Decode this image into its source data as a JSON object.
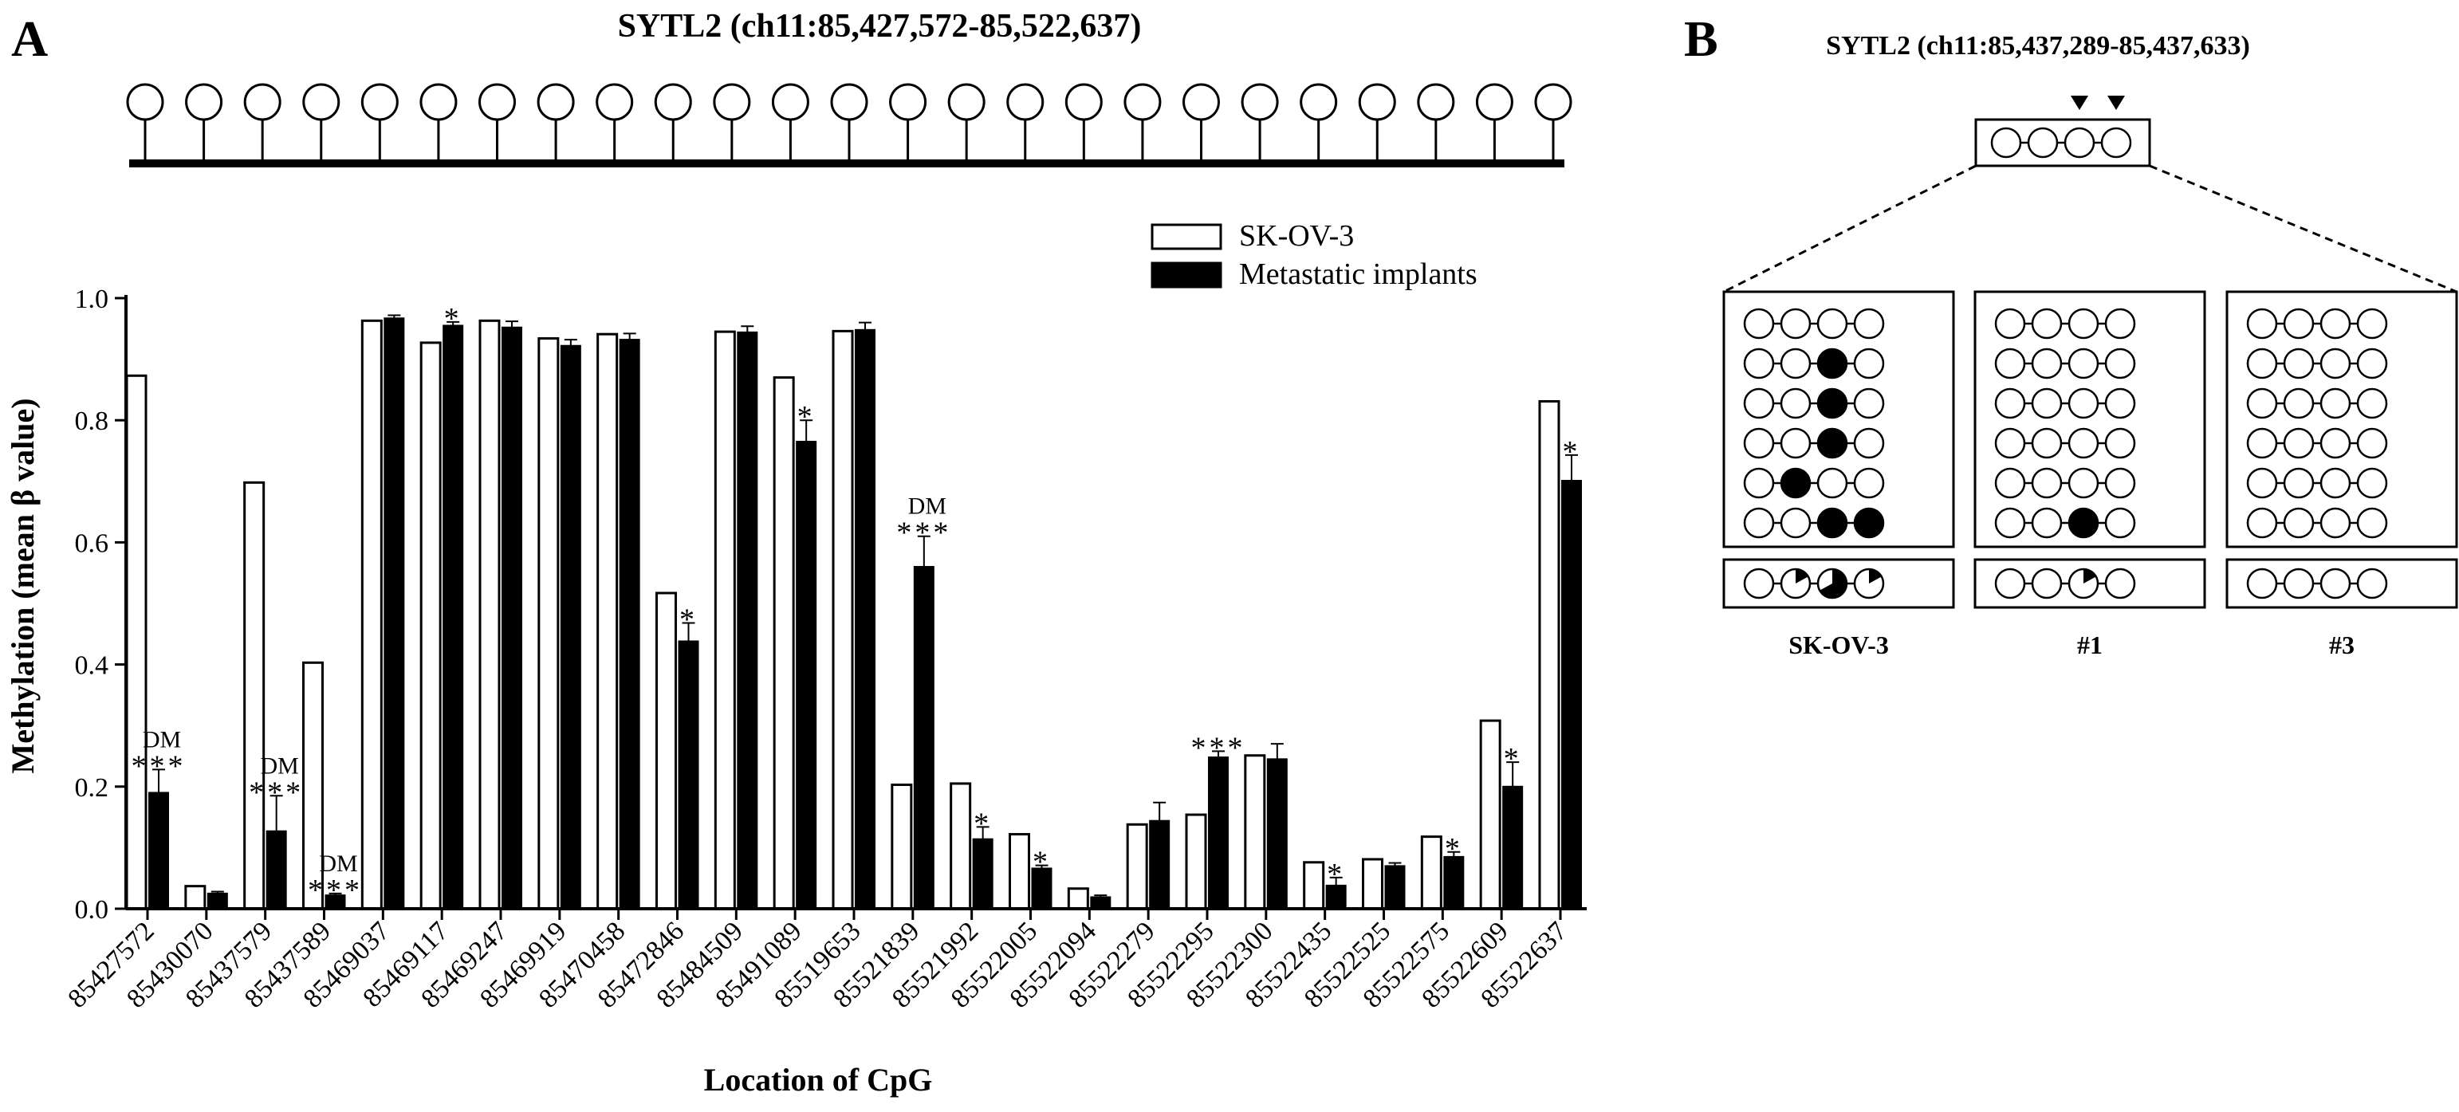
{
  "panel_a": {
    "letter": "A",
    "title": "SYTL2 (ch11:85,427,572-85,522,637)"
  },
  "panel_b": {
    "letter": "B",
    "title": "SYTL2 (ch11:85,437,289-85,437,633)",
    "cpgs_per_read": 4,
    "arrow_positions": [
      3,
      4
    ],
    "samples": [
      {
        "label": "SK-OV-3",
        "reads": [
          [
            0,
            0,
            0,
            0
          ],
          [
            0,
            0,
            1,
            0
          ],
          [
            0,
            0,
            1,
            0
          ],
          [
            0,
            0,
            1,
            0
          ],
          [
            0,
            1,
            0,
            0
          ],
          [
            0,
            0,
            1,
            1
          ]
        ],
        "summary": [
          0,
          0.17,
          0.67,
          0.17
        ]
      },
      {
        "label": "#1",
        "reads": [
          [
            0,
            0,
            0,
            0
          ],
          [
            0,
            0,
            0,
            0
          ],
          [
            0,
            0,
            0,
            0
          ],
          [
            0,
            0,
            0,
            0
          ],
          [
            0,
            0,
            0,
            0
          ],
          [
            0,
            0,
            1,
            0
          ]
        ],
        "summary": [
          0,
          0,
          0.17,
          0
        ]
      },
      {
        "label": "#3",
        "reads": [
          [
            0,
            0,
            0,
            0
          ],
          [
            0,
            0,
            0,
            0
          ],
          [
            0,
            0,
            0,
            0
          ],
          [
            0,
            0,
            0,
            0
          ],
          [
            0,
            0,
            0,
            0
          ],
          [
            0,
            0,
            0,
            0
          ]
        ],
        "summary": [
          0,
          0,
          0,
          0
        ]
      }
    ]
  },
  "colors": {
    "ink": "#000000",
    "background": "#ffffff"
  },
  "chart_data": {
    "type": "bar",
    "title": "SYTL2 (ch11:85,427,572-85,522,637)",
    "xlabel": "Location of CpG",
    "ylabel": "Methylation (mean β value)",
    "ylim": [
      0,
      1.0
    ],
    "yticks": [
      "0.0",
      "0.2",
      "0.4",
      "0.6",
      "0.8",
      "1.0"
    ],
    "legend_position": "top-right",
    "categories": [
      "85427572",
      "85430070",
      "85437579",
      "85437589",
      "85469037",
      "85469117",
      "85469247",
      "85469919",
      "85470458",
      "85472846",
      "85484509",
      "85491089",
      "85519653",
      "85521839",
      "85521992",
      "85522005",
      "85522094",
      "85522279",
      "85522295",
      "85522300",
      "85522435",
      "85522525",
      "85522575",
      "85522609",
      "85522637"
    ],
    "series": [
      {
        "name": "SK-OV-3",
        "fill": "#ffffff",
        "values": [
          0.873,
          0.037,
          0.698,
          0.403,
          0.963,
          0.927,
          0.963,
          0.934,
          0.941,
          0.517,
          0.945,
          0.87,
          0.946,
          0.203,
          0.205,
          0.122,
          0.033,
          0.138,
          0.154,
          0.251,
          0.076,
          0.081,
          0.118,
          0.308,
          0.831
        ],
        "errors": [
          0,
          0,
          0,
          0,
          0,
          0,
          0,
          0,
          0,
          0,
          0,
          0,
          0,
          0,
          0,
          0,
          0,
          0,
          0,
          0,
          0,
          0,
          0,
          0,
          0
        ]
      },
      {
        "name": "Metastatic implants",
        "fill": "#000000",
        "values": [
          0.19,
          0.025,
          0.127,
          0.022,
          0.967,
          0.955,
          0.952,
          0.922,
          0.932,
          0.438,
          0.944,
          0.765,
          0.948,
          0.56,
          0.114,
          0.066,
          0.019,
          0.144,
          0.248,
          0.245,
          0.038,
          0.07,
          0.085,
          0.2,
          0.701
        ],
        "errors": [
          0.038,
          0.003,
          0.058,
          0.003,
          0.005,
          0.006,
          0.01,
          0.01,
          0.01,
          0.03,
          0.01,
          0.035,
          0.012,
          0.05,
          0.02,
          0.005,
          0.003,
          0.03,
          0.01,
          0.025,
          0.013,
          0.005,
          0.008,
          0.04,
          0.042
        ]
      }
    ],
    "annotations": [
      {
        "index": 0,
        "dm": "DM",
        "stars": "***"
      },
      {
        "index": 2,
        "dm": "DM",
        "stars": "***"
      },
      {
        "index": 3,
        "dm": "DM",
        "stars": "***"
      },
      {
        "index": 5,
        "dm": "",
        "stars": "*"
      },
      {
        "index": 9,
        "dm": "",
        "stars": "*"
      },
      {
        "index": 11,
        "dm": "",
        "stars": "*"
      },
      {
        "index": 13,
        "dm": "DM",
        "stars": "***"
      },
      {
        "index": 14,
        "dm": "",
        "stars": "*"
      },
      {
        "index": 15,
        "dm": "",
        "stars": "*"
      },
      {
        "index": 18,
        "dm": "",
        "stars": "***"
      },
      {
        "index": 20,
        "dm": "",
        "stars": "*"
      },
      {
        "index": 22,
        "dm": "",
        "stars": "*"
      },
      {
        "index": 23,
        "dm": "",
        "stars": "*"
      },
      {
        "index": 24,
        "dm": "",
        "stars": "*"
      }
    ],
    "lollipop_count": 25
  }
}
